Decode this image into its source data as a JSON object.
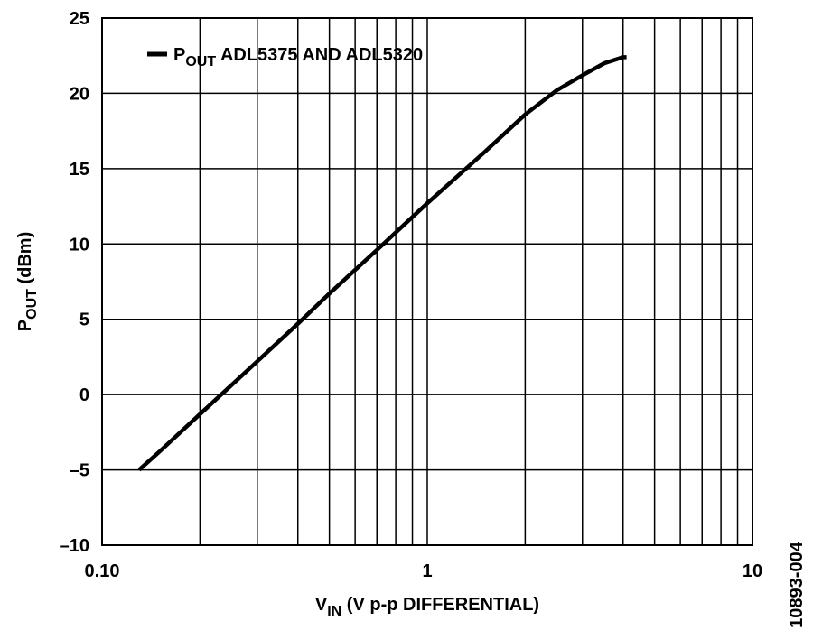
{
  "chart_data": {
    "type": "line",
    "x_label": [
      "V",
      "IN",
      " (V p-p DIFFERENTIAL)"
    ],
    "y_label": [
      "P",
      "OUT",
      "  (dBm)"
    ],
    "side_note": "10893-004",
    "x_log": true,
    "grid": true,
    "legend": "top-left",
    "xlim": [
      0.1,
      10
    ],
    "xticks": [
      {
        "value": 0.1,
        "label": "0.10"
      },
      1,
      10
    ],
    "xminor": [
      0.2,
      0.3,
      0.4,
      0.5,
      0.6,
      0.7,
      0.8,
      0.9,
      2,
      3,
      4,
      5,
      6,
      7,
      8,
      9
    ],
    "ylim": [
      -10,
      25
    ],
    "yticks": [
      {
        "value": -10,
        "label": "–10"
      },
      {
        "value": -5,
        "label": "–5"
      },
      0,
      5,
      10,
      15,
      20,
      25
    ],
    "series": [
      {
        "name": [
          "P",
          "OUT",
          " ADL5375 AND ADL5320"
        ],
        "color": "#000000",
        "x": [
          0.13,
          0.15,
          0.2,
          0.3,
          0.4,
          0.5,
          0.7,
          1,
          1.5,
          2,
          2.5,
          3,
          3.5,
          4,
          4.1
        ],
        "values": [
          -5,
          -3.8,
          -1.3,
          2.2,
          4.7,
          6.7,
          9.6,
          12.7,
          16.1,
          18.6,
          20.2,
          21.2,
          22.0,
          22.4,
          22.4
        ]
      }
    ]
  }
}
